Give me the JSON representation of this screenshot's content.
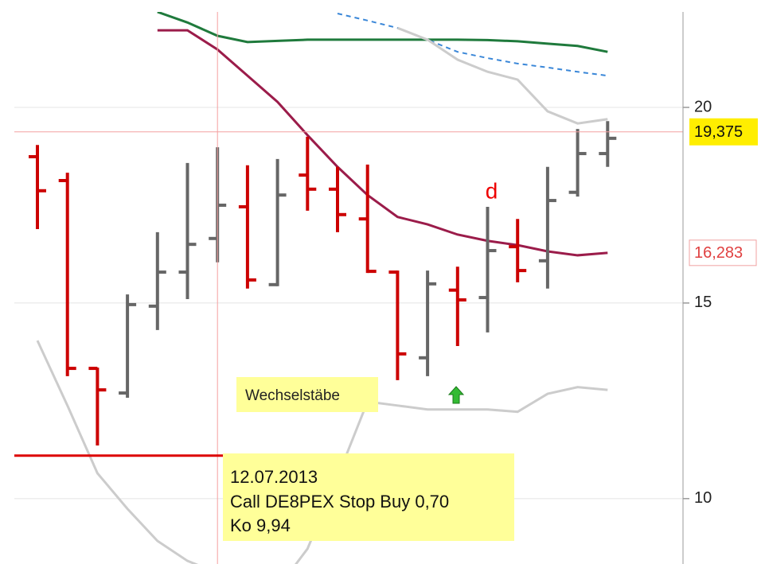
{
  "chart_data": {
    "type": "ohlc",
    "categories": [
      null,
      null,
      null,
      null,
      null,
      null,
      null,
      null,
      null,
      null,
      null,
      null,
      null,
      null,
      null,
      null,
      null,
      null,
      null,
      null
    ],
    "open": [
      18.74,
      18.13,
      13.33,
      12.7,
      14.92,
      15.79,
      16.65,
      17.46,
      15.47,
      18.27,
      17.91,
      17.15,
      15.79,
      13.6,
      15.33,
      15.14,
      16.44,
      16.08,
      17.83,
      18.82
    ],
    "high": [
      19.04,
      18.33,
      13.35,
      15.22,
      16.81,
      18.58,
      18.98,
      18.52,
      18.68,
      19.25,
      18.48,
      18.54,
      15.83,
      15.83,
      15.93,
      17.46,
      17.15,
      18.48,
      19.45,
      19.65
    ],
    "low": [
      16.89,
      13.13,
      11.36,
      12.58,
      14.31,
      15.1,
      16.04,
      15.37,
      15.43,
      17.36,
      16.81,
      15.77,
      13.03,
      13.13,
      13.9,
      14.25,
      15.53,
      15.37,
      17.72,
      18.48
    ],
    "close": [
      17.87,
      13.33,
      12.78,
      14.96,
      15.79,
      16.5,
      17.5,
      15.59,
      17.76,
      17.91,
      17.26,
      15.81,
      13.7,
      15.49,
      15.08,
      16.34,
      15.83,
      17.62,
      18.82,
      19.21
    ],
    "up_color": "#666666",
    "down_color": "#cc0000",
    "ylim": [
      8.33,
      22.44
    ],
    "yticks": [
      10,
      15,
      20
    ],
    "grid": true,
    "lines": [
      {
        "color": "#9b1c4a",
        "dashed": false,
        "values": [
          null,
          null,
          null,
          null,
          21.97,
          21.97,
          21.48,
          20.81,
          20.14,
          19.29,
          18.48,
          17.76,
          17.2,
          17.01,
          16.75,
          16.59,
          16.48,
          16.32,
          16.22,
          16.283
        ]
      },
      {
        "color": "#1f7a3c",
        "dashed": false,
        "values": [
          null,
          null,
          null,
          null,
          22.44,
          22.17,
          21.83,
          21.67,
          21.7,
          21.73,
          21.73,
          21.73,
          21.73,
          21.73,
          21.73,
          21.72,
          21.69,
          21.63,
          21.57,
          21.42
        ]
      },
      {
        "color": "#3a87d8",
        "dashed": true,
        "values": [
          null,
          null,
          null,
          null,
          null,
          null,
          null,
          null,
          null,
          null,
          22.4,
          22.22,
          22.03,
          21.73,
          21.42,
          21.26,
          21.12,
          21.02,
          20.91,
          20.81
        ]
      },
      {
        "color": "#cccccc",
        "dashed": false,
        "values": [
          null,
          null,
          null,
          null,
          null,
          null,
          null,
          null,
          null,
          null,
          null,
          null,
          22.03,
          21.73,
          21.22,
          20.91,
          20.71,
          19.9,
          19.59,
          19.7
        ]
      },
      {
        "color": "#cccccc",
        "dashed": false,
        "values": [
          14.04,
          12.38,
          10.65,
          9.74,
          8.92,
          8.41,
          8.1,
          7.7,
          7.7,
          8.72,
          10.55,
          12.48,
          12.38,
          12.28,
          12.28,
          12.28,
          12.22,
          12.68,
          12.85,
          12.78
        ]
      }
    ],
    "crosshair": {
      "value": 19.375,
      "label": "19,375",
      "index": 6
    },
    "last_value": {
      "value": 16.283,
      "label": "16,283"
    },
    "stop_line": {
      "value": 11.1,
      "end_index": 7
    },
    "signal": {
      "text": "d",
      "index": 15
    },
    "pattern_label": "Wechselstäbe",
    "note": [
      "12.07.2013",
      "Call DE8PEX Stop Buy 0,70",
      "Ko 9,94"
    ]
  }
}
